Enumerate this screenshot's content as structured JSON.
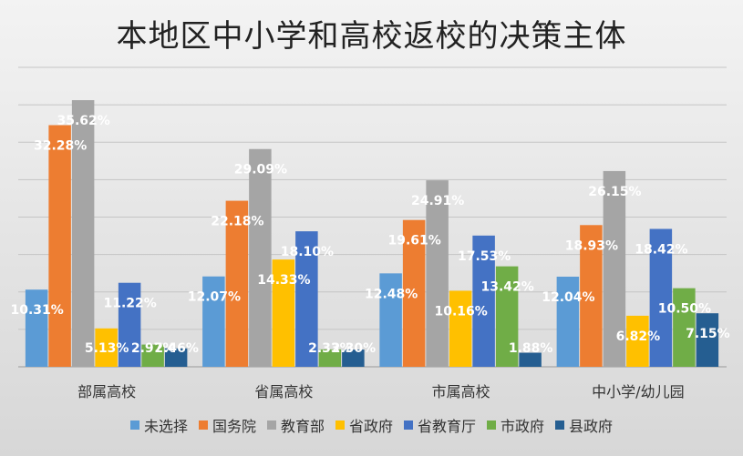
{
  "title": "本地区中小学和高校返校的决策主体",
  "chart_data": {
    "type": "bar",
    "title": "本地区中小学和高校返校的决策主体",
    "categories": [
      "部属高校",
      "省属高校",
      "市属高校",
      "中小学/幼儿园"
    ],
    "ylim": [
      0,
      40
    ],
    "grid": true,
    "legend_position": "bottom",
    "series": [
      {
        "name": "未选择",
        "color": "#5b9bd5",
        "values": [
          10.31,
          12.07,
          12.48,
          12.04
        ]
      },
      {
        "name": "国务院",
        "color": "#ed7d31",
        "values": [
          32.28,
          22.18,
          19.61,
          18.93
        ]
      },
      {
        "name": "教育部",
        "color": "#a5a5a5",
        "values": [
          35.62,
          29.09,
          24.91,
          26.15
        ]
      },
      {
        "name": "省政府",
        "color": "#ffc000",
        "values": [
          5.13,
          14.33,
          10.16,
          6.82
        ]
      },
      {
        "name": "省教育厅",
        "color": "#4472c4",
        "values": [
          11.22,
          18.1,
          17.53,
          18.42
        ]
      },
      {
        "name": "市政府",
        "color": "#70ad47",
        "values": [
          2.97,
          2.33,
          13.42,
          10.5
        ]
      },
      {
        "name": "县政府",
        "color": "#255e91",
        "values": [
          2.46,
          2.3,
          1.88,
          7.15
        ]
      }
    ],
    "data_labels": [
      [
        "10.31%",
        "12.07%",
        "12.48%",
        "12.04%"
      ],
      [
        "32.28%",
        "22.18%",
        "19.61%",
        "18.93%"
      ],
      [
        "35.62%",
        "29.09%",
        "24.91%",
        "26.15%"
      ],
      [
        "5.13%",
        "14.33%",
        "10.16%",
        "6.82%"
      ],
      [
        "11.22%",
        "18.10%",
        "17.53%",
        "18.42%"
      ],
      [
        "2.97%",
        "2.33%",
        "13.42%",
        "10.50%"
      ],
      [
        "2.46%",
        "2.30%",
        "1.88%",
        "7.15%"
      ]
    ]
  }
}
